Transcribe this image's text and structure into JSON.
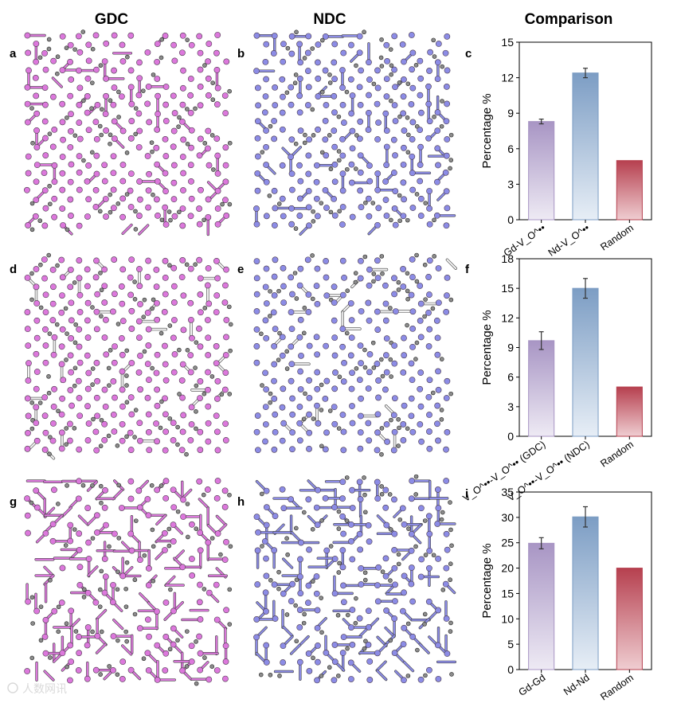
{
  "figure": {
    "column_titles": [
      "GDC",
      "NDC",
      "Comparison"
    ],
    "panel_letters": [
      "a",
      "b",
      "c",
      "d",
      "e",
      "f",
      "g",
      "h",
      "i"
    ],
    "watermark": "人数网讯",
    "lattice_colors": {
      "gdc": "#dc78dc",
      "ndc": "#8c8ce6",
      "vacancy": "#8c8c8c"
    }
  },
  "chart_data": [
    {
      "id": "c",
      "type": "bar",
      "title": "",
      "xlabel": "",
      "ylabel": "Percentage %",
      "ylim": [
        0,
        15
      ],
      "yticks": [
        0,
        3,
        6,
        9,
        12,
        15
      ],
      "categories": [
        "Gd-V_O^••",
        "Nd-V_O^••",
        "Random"
      ],
      "values": [
        8.3,
        12.4,
        5.0
      ],
      "errors": [
        0.2,
        0.4,
        0
      ],
      "colors": [
        "#a895c4",
        "#7c9dc4",
        "#b6404f"
      ]
    },
    {
      "id": "f",
      "type": "bar",
      "title": "",
      "xlabel": "",
      "ylabel": "Percentage %",
      "ylim": [
        0,
        18
      ],
      "yticks": [
        0,
        3,
        6,
        9,
        12,
        15,
        18
      ],
      "categories": [
        "V_O^••-V_O^•• (GDC)",
        "V_O^••-V_O^•• (NDC)",
        "Random"
      ],
      "values": [
        9.7,
        15.0,
        5.0
      ],
      "errors": [
        0.9,
        1.0,
        0
      ],
      "colors": [
        "#a895c4",
        "#7c9dc4",
        "#b6404f"
      ]
    },
    {
      "id": "i",
      "type": "bar",
      "title": "",
      "xlabel": "",
      "ylabel": "Percentage %",
      "ylim": [
        0,
        35
      ],
      "yticks": [
        0,
        5,
        10,
        15,
        20,
        25,
        30,
        35
      ],
      "categories": [
        "Gd-Gd",
        "Nd-Nd",
        "Random"
      ],
      "values": [
        24.9,
        30.1,
        20.0
      ],
      "errors": [
        1.1,
        2.0,
        0
      ],
      "colors": [
        "#a895c4",
        "#7c9dc4",
        "#b6404f"
      ]
    }
  ]
}
